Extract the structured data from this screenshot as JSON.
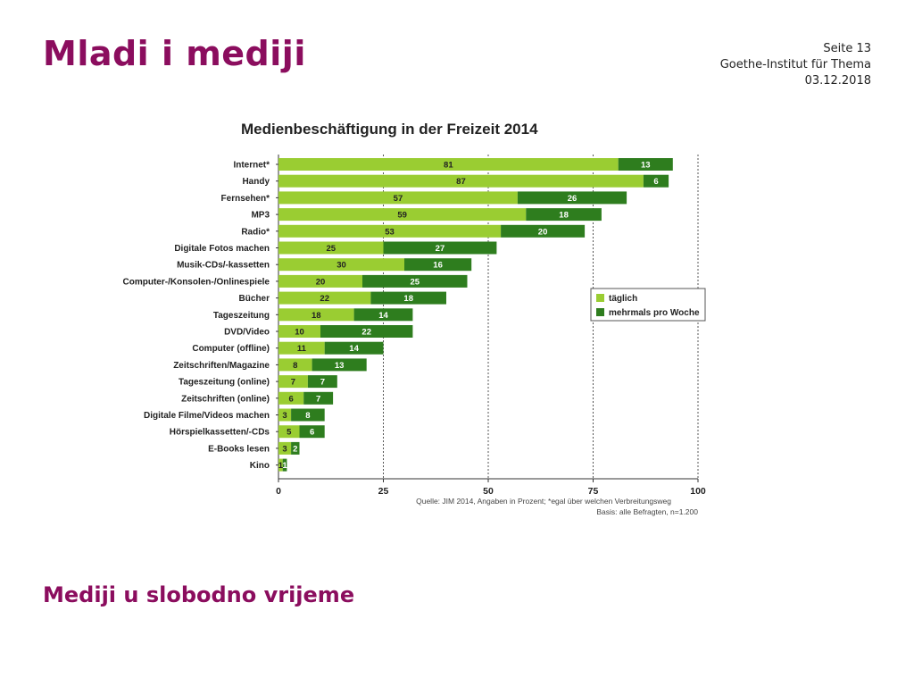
{
  "slide": {
    "title": "Mladi i mediji",
    "page": "Seite 13",
    "institute": "Goethe-Institut für Thema",
    "date": "03.12.2018",
    "subtitle": "Mediji u slobodno vrijeme"
  },
  "colors": {
    "brand": "#8b0d5e",
    "taeglich": "#9acd32",
    "mehrmals": "#2e7d1e"
  },
  "chart_data": {
    "type": "bar",
    "orientation": "horizontal",
    "stacked": true,
    "title": "Medienbeschäftigung in der Freizeit 2014",
    "categories": [
      "Internet*",
      "Handy",
      "Fernsehen*",
      "MP3",
      "Radio*",
      "Digitale Fotos machen",
      "Musik-CDs/-kassetten",
      "Computer-/Konsolen-/Onlinespiele",
      "Bücher",
      "Tageszeitung",
      "DVD/Video",
      "Computer (offline)",
      "Zeitschriften/Magazine",
      "Tageszeitung (online)",
      "Zeitschriften (online)",
      "Digitale Filme/Videos machen",
      "Hörspielkassetten/-CDs",
      "E-Books lesen",
      "Kino"
    ],
    "series": [
      {
        "name": "täglich",
        "values": [
          81,
          87,
          57,
          59,
          53,
          25,
          30,
          20,
          22,
          18,
          10,
          11,
          8,
          7,
          6,
          3,
          5,
          3,
          1
        ]
      },
      {
        "name": "mehrmals pro Woche",
        "values": [
          13,
          6,
          26,
          18,
          20,
          27,
          16,
          25,
          18,
          14,
          22,
          14,
          13,
          7,
          7,
          8,
          6,
          2,
          1
        ]
      }
    ],
    "xlim": [
      0,
      100
    ],
    "xticks": [
      0,
      25,
      50,
      75,
      100
    ],
    "grid": true,
    "legend_position": "right",
    "source": "Quelle: JIM 2014, Angaben in Prozent; *egal über welchen Verbreitungsweg",
    "basis": "Basis: alle Befragten, n=1.200"
  }
}
